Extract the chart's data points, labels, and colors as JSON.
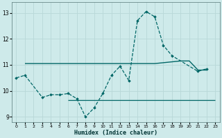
{
  "xlabel": "Humidex (Indice chaleur)",
  "background_color": "#ceeaea",
  "grid_color": "#b8d8d8",
  "line_color": "#006666",
  "ylim": [
    8.8,
    13.4
  ],
  "xlim": [
    -0.5,
    23.5
  ],
  "yticks": [
    9,
    10,
    11,
    12,
    13
  ],
  "xticks": [
    0,
    1,
    2,
    3,
    4,
    5,
    6,
    7,
    8,
    9,
    10,
    11,
    12,
    13,
    14,
    15,
    16,
    17,
    18,
    19,
    20,
    21,
    22,
    23
  ],
  "line1_x": [
    1,
    2,
    3,
    4,
    5,
    6,
    7,
    8,
    9,
    10,
    16,
    19,
    20,
    21,
    22
  ],
  "line1_y": [
    11.05,
    11.05,
    11.05,
    11.05,
    11.05,
    11.05,
    11.05,
    11.05,
    11.05,
    11.05,
    11.05,
    11.15,
    11.15,
    10.8,
    10.8
  ],
  "line2_x": [
    0,
    1,
    3,
    4,
    5,
    6,
    7,
    8,
    9,
    10,
    11,
    12,
    13,
    14,
    15,
    16,
    17,
    18,
    21,
    22
  ],
  "line2_y": [
    10.5,
    10.6,
    9.75,
    9.85,
    9.85,
    9.9,
    9.7,
    9.0,
    9.35,
    9.9,
    10.6,
    10.95,
    10.4,
    12.7,
    13.05,
    12.85,
    11.75,
    11.35,
    10.75,
    10.85
  ],
  "line3_x": [
    6,
    7,
    8,
    9,
    10,
    11,
    12,
    13,
    14,
    15,
    16,
    17,
    18,
    19,
    20,
    21,
    22,
    23
  ],
  "line3_y": [
    9.65,
    9.65,
    9.65,
    9.65,
    9.65,
    9.65,
    9.65,
    9.65,
    9.65,
    9.65,
    9.65,
    9.65,
    9.65,
    9.65,
    9.65,
    9.65,
    9.65,
    9.65
  ]
}
